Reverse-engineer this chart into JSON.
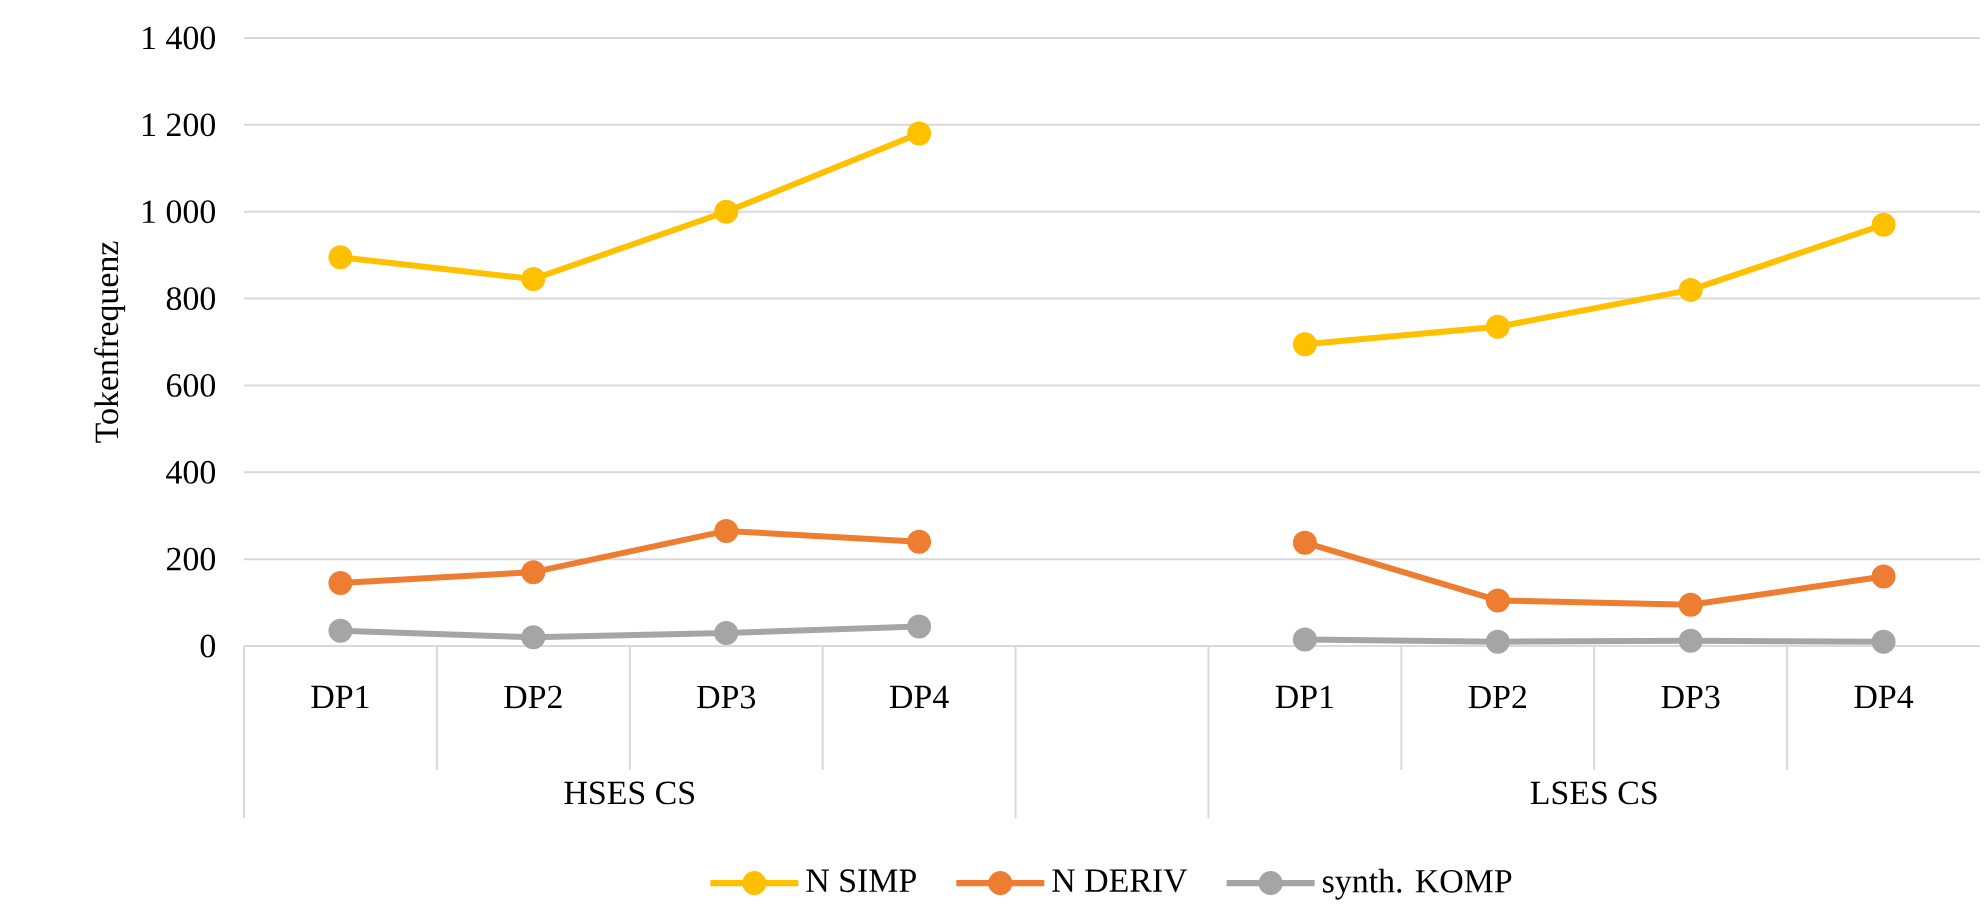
{
  "chart_data": {
    "type": "line",
    "ylabel": "Tokenfrequenz",
    "categories": [
      "DP1",
      "DP2",
      "DP3",
      "DP4",
      null,
      "DP1",
      "DP2",
      "DP3",
      "DP4"
    ],
    "series": [
      {
        "name": "N SIMP",
        "color": "#ffc000",
        "values": [
          895,
          845,
          1000,
          1180,
          null,
          695,
          735,
          820,
          970
        ]
      },
      {
        "name": "N DERIV",
        "color": "#ed7d31",
        "values": [
          145,
          170,
          265,
          240,
          null,
          238,
          105,
          95,
          160
        ]
      },
      {
        "name": "synth. KOMP",
        "color": "#a5a5a5",
        "values": [
          35,
          20,
          30,
          45,
          null,
          15,
          10,
          12,
          10
        ]
      }
    ],
    "ylim": [
      0,
      1400
    ],
    "yticks": [
      0,
      200,
      400,
      600,
      800,
      {
        "value": 1000,
        "label": "1 000"
      },
      {
        "value": 1200,
        "label": "1 200"
      },
      {
        "value": 1400,
        "label": "1 400"
      }
    ],
    "annotations": [
      "HSES CS",
      "LSES CS"
    ],
    "grid": "y",
    "legend": "bottom",
    "marker": "circle",
    "line_style": "solid"
  }
}
